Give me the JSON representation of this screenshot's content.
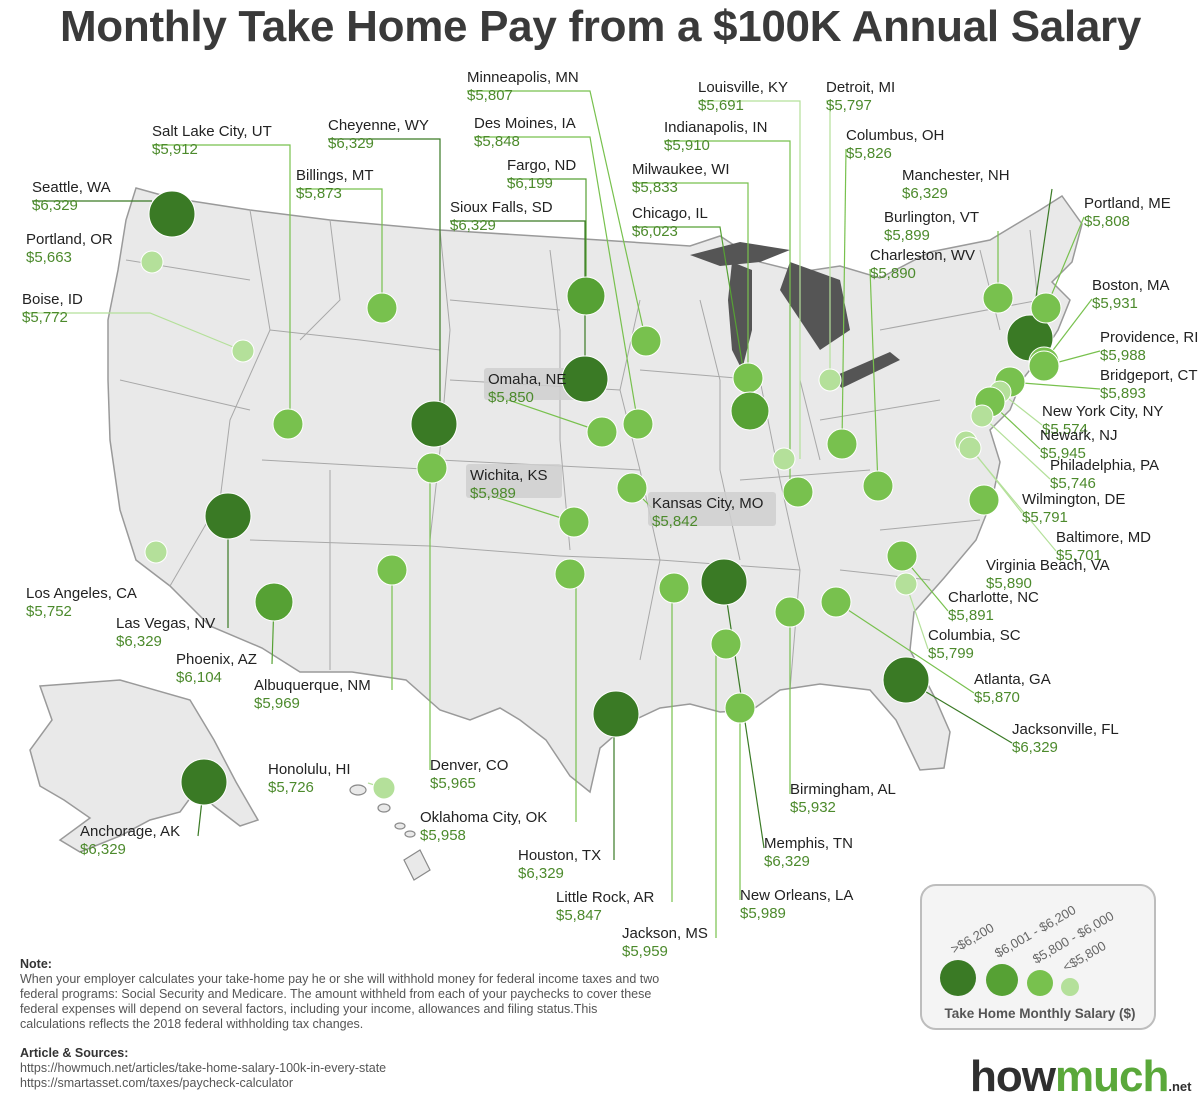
{
  "title": "Monthly Take Home Pay from a $100K Annual Salary",
  "colors": {
    "tier1": "#3a7a25",
    "tier2": "#56a134",
    "tier3": "#78c14e",
    "tier4": "#b4e09a",
    "value_text": "#4c8a2c"
  },
  "cities": [
    {
      "name": "Seattle, WA",
      "value": "$6,329",
      "tier": 1
    },
    {
      "name": "Portland, OR",
      "value": "$5,663",
      "tier": 4
    },
    {
      "name": "Boise, ID",
      "value": "$5,772",
      "tier": 4
    },
    {
      "name": "Salt Lake City, UT",
      "value": "$5,912",
      "tier": 3
    },
    {
      "name": "Billings, MT",
      "value": "$5,873",
      "tier": 3
    },
    {
      "name": "Cheyenne, WY",
      "value": "$6,329",
      "tier": 1
    },
    {
      "name": "Minneapolis, MN",
      "value": "$5,807",
      "tier": 3
    },
    {
      "name": "Des Moines, IA",
      "value": "$5,848",
      "tier": 3
    },
    {
      "name": "Fargo, ND",
      "value": "$6,199",
      "tier": 2
    },
    {
      "name": "Sioux Falls, SD",
      "value": "$6,329",
      "tier": 1
    },
    {
      "name": "Louisville, KY",
      "value": "$5,691",
      "tier": 4
    },
    {
      "name": "Indianapolis, IN",
      "value": "$5,910",
      "tier": 3
    },
    {
      "name": "Milwaukee, WI",
      "value": "$5,833",
      "tier": 3
    },
    {
      "name": "Chicago, IL",
      "value": "$6,023",
      "tier": 2
    },
    {
      "name": "Detroit, MI",
      "value": "$5,797",
      "tier": 4
    },
    {
      "name": "Columbus, OH",
      "value": "$5,826",
      "tier": 3
    },
    {
      "name": "Manchester, NH",
      "value": "$6,329",
      "tier": 1
    },
    {
      "name": "Burlington, VT",
      "value": "$5,899",
      "tier": 3
    },
    {
      "name": "Charleston, WV",
      "value": "$5,890",
      "tier": 3
    },
    {
      "name": "Portland, ME",
      "value": "$5,808",
      "tier": 3
    },
    {
      "name": "Boston, MA",
      "value": "$5,931",
      "tier": 3
    },
    {
      "name": "Providence, RI",
      "value": "$5,988",
      "tier": 3
    },
    {
      "name": "Bridgeport, CT",
      "value": "$5,893",
      "tier": 3
    },
    {
      "name": "New York City, NY",
      "value": "$5,574",
      "tier": 4
    },
    {
      "name": "Newark, NJ",
      "value": "$5,945",
      "tier": 3
    },
    {
      "name": "Philadelphia, PA",
      "value": "$5,746",
      "tier": 4
    },
    {
      "name": "Wilmington, DE",
      "value": "$5,791",
      "tier": 4
    },
    {
      "name": "Baltimore, MD",
      "value": "$5,701",
      "tier": 4
    },
    {
      "name": "Virginia Beach, VA",
      "value": "$5,890",
      "tier": 3
    },
    {
      "name": "Charlotte, NC",
      "value": "$5,891",
      "tier": 3
    },
    {
      "name": "Columbia, SC",
      "value": "$5,799",
      "tier": 4
    },
    {
      "name": "Atlanta, GA",
      "value": "$5,870",
      "tier": 3
    },
    {
      "name": "Jacksonville, FL",
      "value": "$6,329",
      "tier": 1
    },
    {
      "name": "Birmingham, AL",
      "value": "$5,932",
      "tier": 3
    },
    {
      "name": "Memphis, TN",
      "value": "$6,329",
      "tier": 1
    },
    {
      "name": "New Orleans, LA",
      "value": "$5,989",
      "tier": 3
    },
    {
      "name": "Jackson, MS",
      "value": "$5,959",
      "tier": 3
    },
    {
      "name": "Little Rock, AR",
      "value": "$5,847",
      "tier": 3
    },
    {
      "name": "Houston, TX",
      "value": "$6,329",
      "tier": 1
    },
    {
      "name": "Oklahoma City, OK",
      "value": "$5,958",
      "tier": 3
    },
    {
      "name": "Denver, CO",
      "value": "$5,965",
      "tier": 3
    },
    {
      "name": "Honolulu, HI",
      "value": "$5,726",
      "tier": 4
    },
    {
      "name": "Anchorage, AK",
      "value": "$6,329",
      "tier": 1
    },
    {
      "name": "Albuquerque, NM",
      "value": "$5,969",
      "tier": 3
    },
    {
      "name": "Phoenix, AZ",
      "value": "$6,104",
      "tier": 2
    },
    {
      "name": "Las Vegas, NV",
      "value": "$6,329",
      "tier": 1
    },
    {
      "name": "Los Angeles, CA",
      "value": "$5,752",
      "tier": 4
    },
    {
      "name": "Omaha, NE",
      "value": "$5,850",
      "tier": 3
    },
    {
      "name": "Wichita, KS",
      "value": "$5,989",
      "tier": 3
    },
    {
      "name": "Kansas City, MO",
      "value": "$5,842",
      "tier": 3
    }
  ],
  "legend": {
    "title": "Take Home Monthly Salary ($)",
    "items": [
      {
        "label": ">$6,200",
        "tier": 1
      },
      {
        "label": "$6,001 - $6,200",
        "tier": 2
      },
      {
        "label": "$5,800 - $6,000",
        "tier": 3
      },
      {
        "label": "<$5,800",
        "tier": 4
      }
    ]
  },
  "note": {
    "heading": "Note:",
    "text": "When your employer calculates your take-home pay he or she will withhold money for federal income taxes and two federal programs: Social Security and Medicare. The amount withheld from each of your paychecks to cover these federal expenses will depend on several factors, including your income, allowances and filing status.This calculations reflects the 2018 federal withholding tax changes."
  },
  "sources": {
    "heading": "Article & Sources:",
    "links": [
      "https://howmuch.net/articles/take-home-salary-100k-in-every-state",
      "https://smartasset.com/taxes/paycheck-calculator"
    ]
  },
  "logo": {
    "part1": "how",
    "part2": "much",
    "suffix": ".net"
  }
}
